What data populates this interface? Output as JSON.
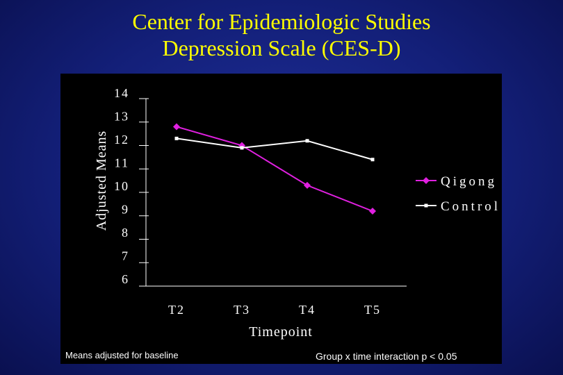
{
  "slide": {
    "title_line1": "Center for Epidemiologic Studies",
    "title_line2": "Depression Scale (CES-D)",
    "footnote_left": "Means adjusted for baseline",
    "footnote_right": "Group x time interaction p < 0.05"
  },
  "colors": {
    "title": "#ffff00",
    "qigong": "#e020e0",
    "control": "#ffffff",
    "panel": "#000000"
  },
  "chart_data": {
    "type": "line",
    "title": "Center for Epidemiologic Studies Depression Scale (CES-D)",
    "xlabel": "Timepoint",
    "ylabel": "Adjusted Means",
    "categories": [
      "T2",
      "T3",
      "T4",
      "T5"
    ],
    "yticks": [
      14,
      13,
      12,
      11,
      10,
      9,
      8,
      7,
      6
    ],
    "ylim": [
      6,
      14
    ],
    "legend_position": "right",
    "series": [
      {
        "name": "Qigong",
        "color": "#e020e0",
        "marker": "diamond",
        "values": [
          12.8,
          12.0,
          10.3,
          9.2
        ]
      },
      {
        "name": "Control",
        "color": "#ffffff",
        "marker": "square",
        "values": [
          12.3,
          11.9,
          12.2,
          11.4
        ]
      }
    ]
  }
}
